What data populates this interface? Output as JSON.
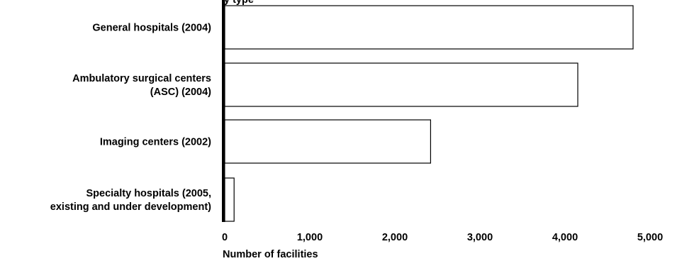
{
  "chart_data": {
    "type": "bar",
    "orientation": "horizontal",
    "title_fragment": "y type",
    "categories": [
      [
        "General hospitals (2004)"
      ],
      [
        "Ambulatory surgical centers",
        "(ASC) (2004)"
      ],
      [
        "Imaging centers (2002)"
      ],
      [
        "Specialty hospitals (2005,",
        "existing and under development)"
      ]
    ],
    "values": [
      4800,
      4150,
      2420,
      110
    ],
    "xlabel": "Number of facilities",
    "xlim": [
      0,
      5000
    ],
    "xticks": [
      0,
      1000,
      2000,
      3000,
      4000,
      5000
    ],
    "xtick_labels": [
      "0",
      "1,000",
      "2,000",
      "3,000",
      "4,000",
      "5,000"
    ],
    "grid": false,
    "colors": {
      "bar_fill": "#ffffff",
      "bar_stroke": "#000000",
      "axis": "#000000"
    }
  }
}
